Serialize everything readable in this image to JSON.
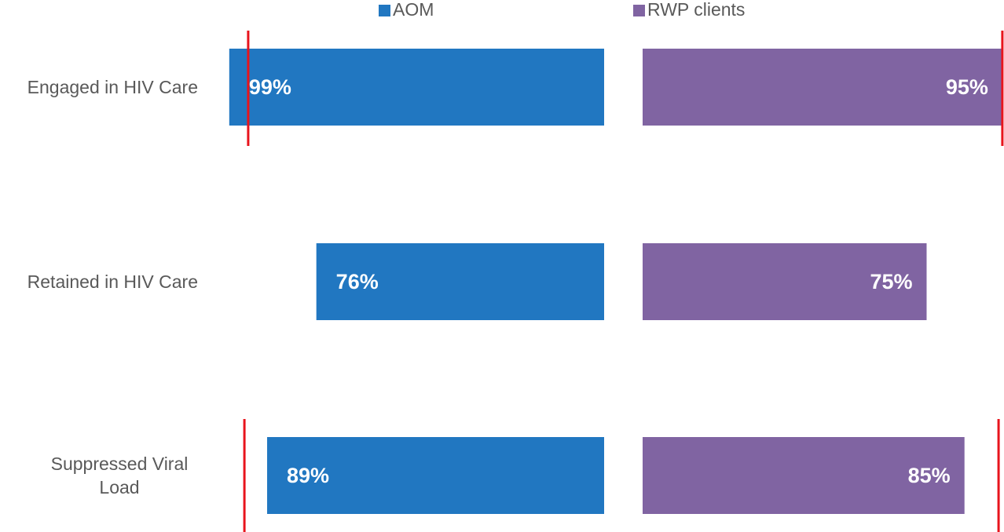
{
  "chart_data": {
    "type": "butterfly-bar",
    "categories": [
      "Engaged in HIV Care",
      "Retained in HIV Care",
      "Suppressed Viral Load"
    ],
    "xlim": [
      0,
      100
    ],
    "series": [
      {
        "name": "AOM",
        "color": "#2177c1",
        "values": [
          99,
          76,
          89
        ],
        "value_labels": [
          "99%",
          "76%",
          "89%"
        ],
        "reference_lines": [
          94,
          null,
          95
        ]
      },
      {
        "name": "RWP clients",
        "color": "#8064a2",
        "values": [
          95,
          75,
          85
        ],
        "value_labels": [
          "95%",
          "75%",
          "85%"
        ],
        "reference_lines": [
          95,
          null,
          94
        ]
      }
    ],
    "reference_color": "#e8141c"
  }
}
